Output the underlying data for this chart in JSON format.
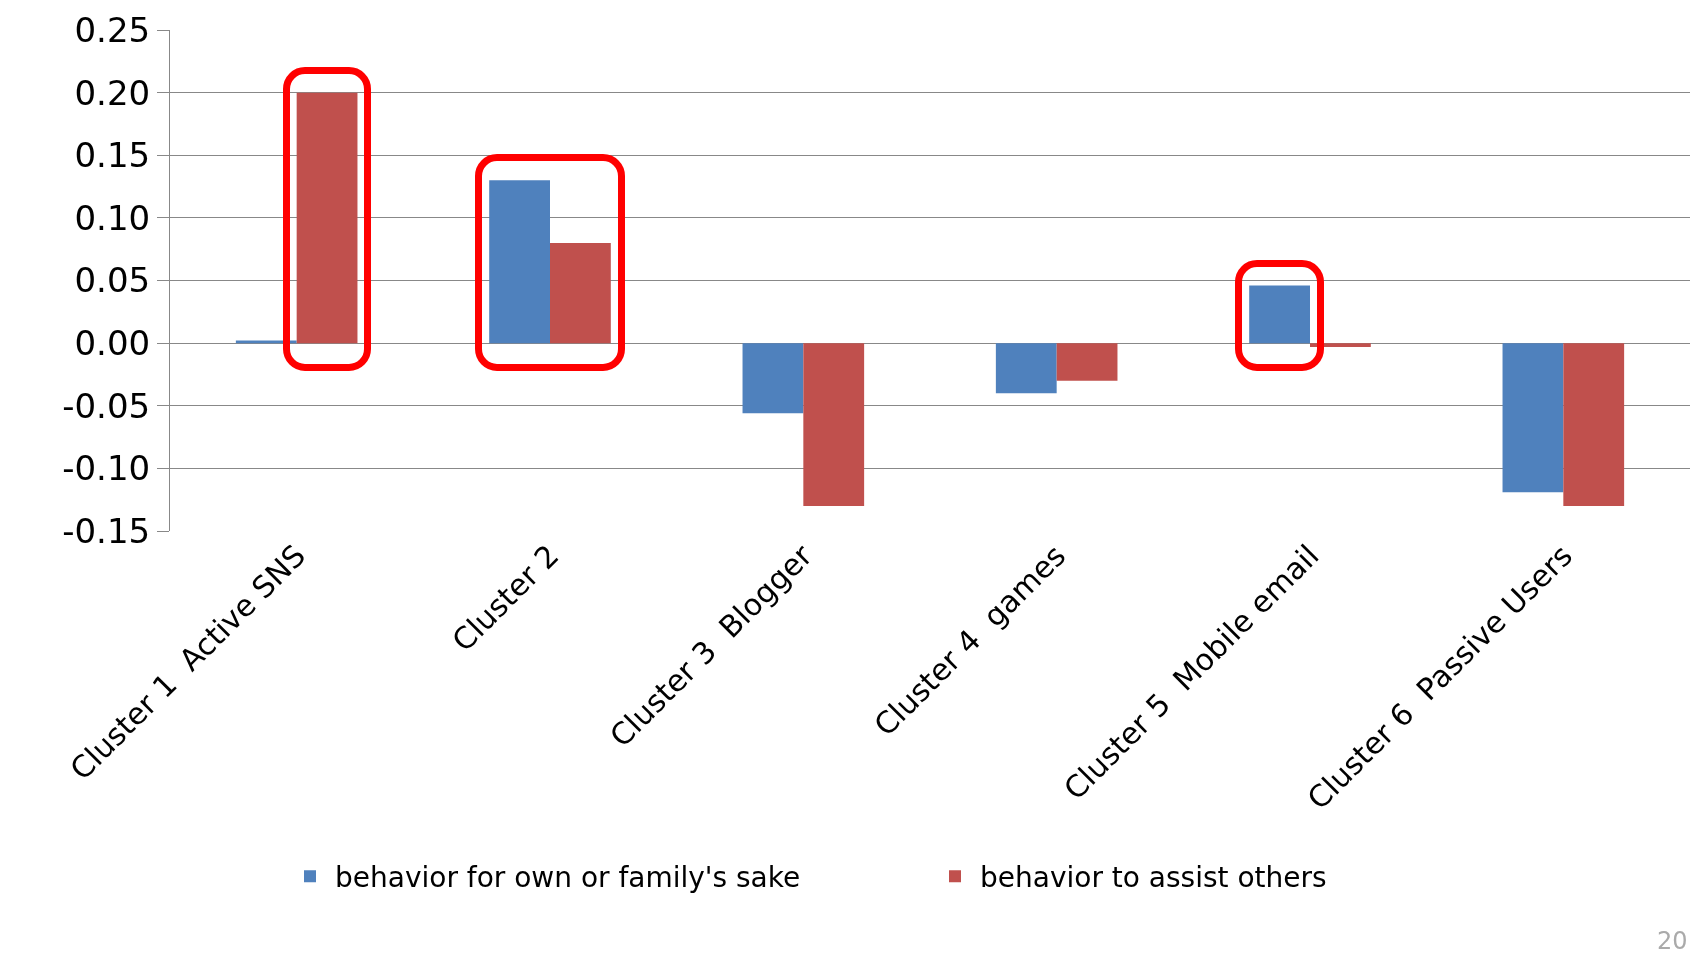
{
  "chart_data": {
    "type": "bar",
    "categories": [
      "Cluster 1  Active SNS",
      "Cluster 2",
      "Cluster 3  Blogger",
      "Cluster 4  games",
      "Cluster 5  Mobile email",
      "Cluster 6  Passive Users"
    ],
    "series": [
      {
        "name": "behavior for own or family's sake",
        "color": "#4f81bd",
        "values": [
          0.002,
          0.13,
          -0.056,
          -0.04,
          0.046,
          -0.119
        ]
      },
      {
        "name": "behavior to assist others",
        "color": "#c0504d",
        "values": [
          0.2,
          0.08,
          -0.13,
          -0.03,
          -0.003,
          -0.13
        ]
      }
    ],
    "ylim": [
      -0.15,
      0.25
    ],
    "yticks": [
      {
        "value": -0.15,
        "label": "-0.15"
      },
      {
        "value": -0.1,
        "label": "-0.10"
      },
      {
        "value": -0.05,
        "label": "-0.05"
      },
      {
        "value": 0,
        "label": "0.00"
      },
      {
        "value": 0.05,
        "label": "0.05"
      },
      {
        "value": 0.1,
        "label": "0.10"
      },
      {
        "value": 0.15,
        "label": "0.15"
      },
      {
        "value": 0.2,
        "label": "0.20"
      },
      {
        "value": 0.25,
        "label": "0.25"
      }
    ],
    "grid": "y",
    "legend": "bottom",
    "annotations": [
      "20"
    ]
  }
}
